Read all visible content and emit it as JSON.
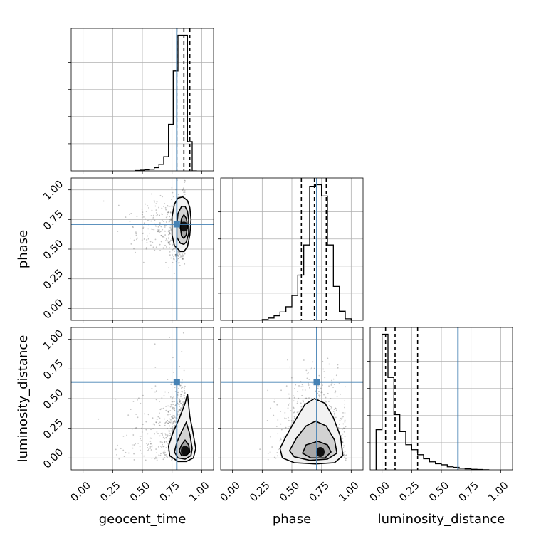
{
  "colors": {
    "truth": "#4682b4",
    "contour": "#000000",
    "scatter": "#555555",
    "grid": "#b0b0b0",
    "hist": "#000000"
  },
  "labels": {
    "geocent_time": "geocent_time",
    "phase": "phase",
    "luminosity_distance": "luminosity_distance"
  },
  "chart_data": {
    "type": "corner",
    "parameters": [
      "geocent_time",
      "phase",
      "luminosity_distance"
    ],
    "ticks": [
      0.0,
      0.25,
      0.5,
      0.75,
      1.0
    ],
    "tick_labels": [
      "0.00",
      "0.25",
      "0.50",
      "0.75",
      "1.00"
    ],
    "axis_range": [
      -0.1,
      1.1
    ],
    "grid": true,
    "truths": {
      "geocent_time": 0.79,
      "phase": 0.71,
      "luminosity_distance": 0.64
    },
    "quantiles": {
      "geocent_time": [
        0.79,
        0.85,
        0.9
      ],
      "phase": [
        0.58,
        0.69,
        0.79
      ],
      "luminosity_distance": [
        0.03,
        0.11,
        0.3
      ]
    },
    "histograms": {
      "geocent_time": {
        "bin_edges": [
          0.44,
          0.48,
          0.52,
          0.56,
          0.6,
          0.64,
          0.68,
          0.72,
          0.76,
          0.8,
          0.84,
          0.88,
          0.92,
          0.96
        ],
        "counts": [
          0.3,
          0.6,
          1.0,
          1.5,
          3,
          6,
          13,
          43,
          92,
          125,
          125,
          27,
          0
        ]
      },
      "phase": {
        "bin_edges": [
          0.25,
          0.3,
          0.35,
          0.4,
          0.45,
          0.5,
          0.55,
          0.6,
          0.65,
          0.7,
          0.75,
          0.8,
          0.85,
          0.9,
          0.95,
          1.0
        ],
        "counts": [
          1,
          3,
          6,
          11,
          18,
          33,
          60,
          100,
          178,
          180,
          165,
          100,
          45,
          12,
          2
        ]
      },
      "luminosity_distance": {
        "bin_edges": [
          -0.05,
          0.0,
          0.05,
          0.1,
          0.15,
          0.2,
          0.25,
          0.3,
          0.35,
          0.4,
          0.45,
          0.5,
          0.55,
          0.6,
          0.65,
          0.7,
          0.75,
          0.8,
          0.85,
          0.9
        ],
        "counts": [
          40,
          135,
          92,
          55,
          38,
          25,
          20,
          15,
          11,
          8,
          6,
          5,
          3,
          2.5,
          1.5,
          1,
          0.5,
          0.3,
          0.1
        ]
      }
    },
    "densities_2d": [
      {
        "x": "geocent_time",
        "y": "phase",
        "core": [
          0.85,
          0.69
        ],
        "cloud_center": [
          0.82,
          0.69
        ],
        "cloud_spread": [
          0.05,
          0.13
        ],
        "contours": [
          {
            "x": [
              0.84,
              0.88,
              0.9,
              0.91,
              0.9,
              0.88,
              0.85,
              0.82,
              0.77,
              0.75,
              0.75,
              0.77,
              0.8,
              0.84
            ],
            "y": [
              0.94,
              0.91,
              0.85,
              0.75,
              0.62,
              0.52,
              0.48,
              0.48,
              0.53,
              0.62,
              0.77,
              0.88,
              0.93,
              0.94
            ]
          },
          {
            "x": [
              0.86,
              0.88,
              0.89,
              0.89,
              0.87,
              0.85,
              0.82,
              0.79,
              0.79,
              0.8,
              0.83,
              0.86
            ],
            "y": [
              0.86,
              0.82,
              0.75,
              0.63,
              0.56,
              0.54,
              0.55,
              0.6,
              0.7,
              0.8,
              0.86,
              0.86
            ]
          },
          {
            "x": [
              0.85,
              0.87,
              0.88,
              0.87,
              0.85,
              0.83,
              0.82,
              0.83,
              0.85
            ],
            "y": [
              0.79,
              0.76,
              0.7,
              0.62,
              0.59,
              0.61,
              0.69,
              0.76,
              0.79
            ]
          }
        ]
      },
      {
        "x": "geocent_time",
        "y": "luminosity_distance",
        "core": [
          0.86,
          0.06
        ],
        "cloud_center": [
          0.82,
          0.15
        ],
        "cloud_spread": [
          0.06,
          0.22
        ],
        "contours": [
          {
            "x": [
              0.88,
              0.9,
              0.92,
              0.95,
              0.93,
              0.87,
              0.8,
              0.73,
              0.72,
              0.76,
              0.81,
              0.86,
              0.88
            ],
            "y": [
              0.54,
              0.35,
              0.25,
              0.08,
              0.0,
              -0.03,
              -0.03,
              0.02,
              0.1,
              0.22,
              0.33,
              0.46,
              0.54
            ]
          },
          {
            "x": [
              0.87,
              0.9,
              0.92,
              0.91,
              0.86,
              0.8,
              0.77,
              0.79,
              0.83,
              0.87
            ],
            "y": [
              0.3,
              0.2,
              0.08,
              0.02,
              -0.01,
              0.0,
              0.05,
              0.13,
              0.22,
              0.3
            ]
          },
          {
            "x": [
              0.86,
              0.89,
              0.9,
              0.87,
              0.83,
              0.81,
              0.83,
              0.86
            ],
            "y": [
              0.15,
              0.11,
              0.05,
              0.02,
              0.02,
              0.06,
              0.11,
              0.15
            ]
          }
        ]
      },
      {
        "x": "phase",
        "y": "luminosity_distance",
        "core": [
          0.74,
          0.05
        ],
        "cloud_center": [
          0.7,
          0.18
        ],
        "cloud_spread": [
          0.13,
          0.24
        ],
        "contours": [
          {
            "x": [
              0.69,
              0.78,
              0.85,
              0.91,
              0.93,
              0.86,
              0.7,
              0.52,
              0.42,
              0.4,
              0.45,
              0.53,
              0.61,
              0.69
            ],
            "y": [
              0.5,
              0.46,
              0.34,
              0.18,
              0.02,
              -0.04,
              -0.05,
              -0.04,
              0.0,
              0.08,
              0.18,
              0.32,
              0.45,
              0.5
            ]
          },
          {
            "x": [
              0.7,
              0.79,
              0.86,
              0.88,
              0.8,
              0.65,
              0.52,
              0.48,
              0.54,
              0.62,
              0.7
            ],
            "y": [
              0.31,
              0.27,
              0.15,
              0.04,
              -0.01,
              -0.02,
              0.01,
              0.06,
              0.17,
              0.27,
              0.31
            ]
          },
          {
            "x": [
              0.72,
              0.8,
              0.83,
              0.78,
              0.66,
              0.59,
              0.62,
              0.72
            ],
            "y": [
              0.14,
              0.11,
              0.05,
              0.0,
              0.0,
              0.04,
              0.11,
              0.14
            ]
          }
        ]
      }
    ]
  }
}
